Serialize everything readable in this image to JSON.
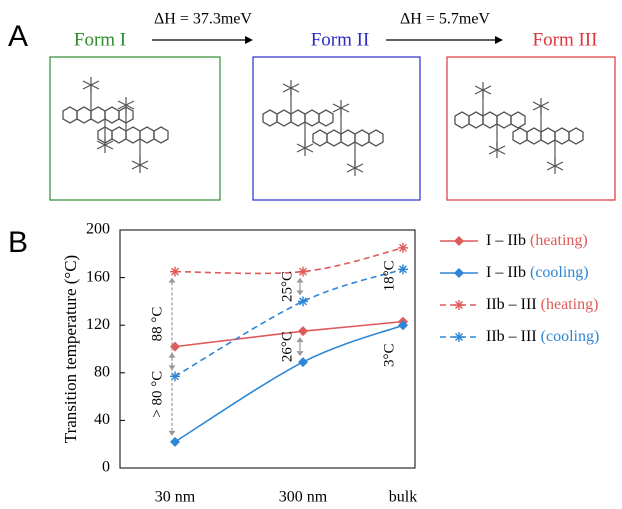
{
  "panel_a": {
    "label": "A",
    "forms": [
      {
        "name": "Form I",
        "color": "#2e8b2e"
      },
      {
        "name": "Form II",
        "color": "#2b2bc8"
      },
      {
        "name": "Form III",
        "color": "#e0343a"
      }
    ],
    "transitions": [
      "ΔH = 37.3meV",
      "ΔH = 5.7meV"
    ]
  },
  "panel_b": {
    "label": "B"
  },
  "chart_data": {
    "type": "line",
    "y_label": "Transition temperature (°C)",
    "categories": [
      "30 nm",
      "300 nm",
      "bulk"
    ],
    "ylim": [
      0,
      200
    ],
    "yticks": [
      0,
      40,
      80,
      120,
      160,
      200
    ],
    "series": [
      {
        "name": "I – IIb",
        "condition": "(heating)",
        "color": "#e05a5a",
        "marker": "diamond",
        "dashed": false,
        "smooth": false,
        "values": [
          102,
          115,
          123
        ]
      },
      {
        "name": "I – IIb",
        "condition": "(cooling)",
        "color": "#2f86d6",
        "marker": "diamond",
        "dashed": false,
        "smooth": true,
        "values": [
          22,
          89,
          120
        ]
      },
      {
        "name": "IIb – III",
        "condition": "(heating)",
        "color": "#e05a5a",
        "marker": "asterisk",
        "dashed": true,
        "smooth": true,
        "values": [
          165,
          165,
          185
        ]
      },
      {
        "name": "IIb – III",
        "condition": "(cooling)",
        "color": "#2f86d6",
        "marker": "asterisk",
        "dashed": true,
        "smooth": true,
        "values": [
          77,
          140,
          167
        ]
      }
    ],
    "annotations": [
      "> 80 °C",
      "88 °C",
      "26°C",
      "25°C",
      "3°C",
      "18°C"
    ]
  }
}
